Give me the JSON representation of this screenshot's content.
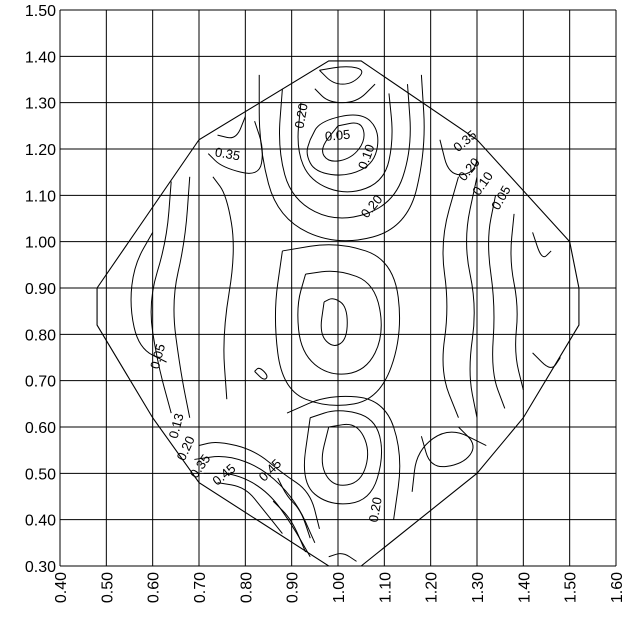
{
  "chart_data": {
    "type": "contour",
    "title": "",
    "xlabel": "",
    "ylabel": "",
    "xlim": [
      0.4,
      1.6
    ],
    "ylim": [
      0.3,
      1.5
    ],
    "grid": true,
    "x_ticks": [
      "0.40",
      "0.50",
      "0.60",
      "0.70",
      "0.80",
      "0.90",
      "1.00",
      "1.10",
      "1.20",
      "1.30",
      "1.40",
      "1.50",
      "1.60"
    ],
    "y_ticks": [
      "0.30",
      "0.40",
      "0.50",
      "0.60",
      "0.70",
      "0.80",
      "0.90",
      "1.00",
      "1.10",
      "1.20",
      "1.30",
      "1.40",
      "1.50"
    ],
    "boundary": [
      [
        0.98,
        1.39
      ],
      [
        1.05,
        1.39
      ],
      [
        1.3,
        1.22
      ],
      [
        1.5,
        1.0
      ],
      [
        1.52,
        0.9
      ],
      [
        1.52,
        0.82
      ],
      [
        1.4,
        0.62
      ],
      [
        1.3,
        0.5
      ],
      [
        1.05,
        0.3
      ],
      [
        0.98,
        0.3
      ],
      [
        0.7,
        0.48
      ],
      [
        0.6,
        0.62
      ],
      [
        0.48,
        0.82
      ],
      [
        0.48,
        0.9
      ],
      [
        0.7,
        1.22
      ]
    ],
    "contour_labels": [
      {
        "text": "0.05",
        "x": 1.0,
        "y": 1.22,
        "rotation": -5
      },
      {
        "text": "0.10",
        "x": 1.07,
        "y": 1.18,
        "rotation": -70
      },
      {
        "text": "0.20",
        "x": 0.93,
        "y": 1.27,
        "rotation": -80
      },
      {
        "text": "0.20",
        "x": 1.08,
        "y": 1.07,
        "rotation": -50
      },
      {
        "text": "0.35",
        "x": 0.76,
        "y": 1.18,
        "rotation": 10
      },
      {
        "text": "0.35",
        "x": 1.28,
        "y": 1.21,
        "rotation": -40
      },
      {
        "text": "0.20",
        "x": 1.29,
        "y": 1.15,
        "rotation": -50
      },
      {
        "text": "0.10",
        "x": 1.32,
        "y": 1.12,
        "rotation": -55
      },
      {
        "text": "0.05",
        "x": 1.36,
        "y": 1.09,
        "rotation": -60
      },
      {
        "text": "0.05",
        "x": 0.62,
        "y": 0.75,
        "rotation": -75
      },
      {
        "text": "0.13",
        "x": 0.66,
        "y": 0.6,
        "rotation": -75
      },
      {
        "text": "0.20",
        "x": 0.68,
        "y": 0.55,
        "rotation": -65
      },
      {
        "text": "0.35",
        "x": 0.71,
        "y": 0.51,
        "rotation": -55
      },
      {
        "text": "0.45",
        "x": 0.76,
        "y": 0.49,
        "rotation": -40
      },
      {
        "text": "0.45",
        "x": 0.86,
        "y": 0.5,
        "rotation": -45
      },
      {
        "text": "0.20",
        "x": 1.09,
        "y": 0.42,
        "rotation": -80
      }
    ],
    "contours": [
      [
        [
          0.96,
          1.37
        ],
        [
          0.99,
          1.34
        ],
        [
          1.03,
          1.34
        ],
        [
          1.06,
          1.37
        ],
        [
          1.02,
          1.38
        ],
        [
          0.96,
          1.37
        ]
      ],
      [
        [
          0.95,
          1.33
        ],
        [
          0.98,
          1.3
        ],
        [
          1.04,
          1.3
        ],
        [
          1.08,
          1.34
        ]
      ],
      [
        [
          1.0,
          1.25
        ],
        [
          1.05,
          1.26
        ],
        [
          1.06,
          1.22
        ],
        [
          1.03,
          1.18
        ],
        [
          0.98,
          1.17
        ],
        [
          0.96,
          1.2
        ],
        [
          1.0,
          1.25
        ]
      ],
      [
        [
          0.94,
          1.22
        ],
        [
          0.96,
          1.26
        ],
        [
          1.05,
          1.28
        ],
        [
          1.09,
          1.24
        ],
        [
          1.08,
          1.17
        ],
        [
          1.02,
          1.14
        ],
        [
          0.95,
          1.15
        ],
        [
          0.93,
          1.19
        ],
        [
          0.94,
          1.22
        ]
      ],
      [
        [
          0.92,
          1.3
        ],
        [
          0.91,
          1.2
        ],
        [
          0.94,
          1.13
        ],
        [
          1.02,
          1.1
        ],
        [
          1.1,
          1.13
        ],
        [
          1.12,
          1.22
        ],
        [
          1.11,
          1.32
        ]
      ],
      [
        [
          0.88,
          1.33
        ],
        [
          0.87,
          1.2
        ],
        [
          0.9,
          1.09
        ],
        [
          1.0,
          1.04
        ],
        [
          1.12,
          1.08
        ],
        [
          1.16,
          1.2
        ],
        [
          1.15,
          1.34
        ]
      ],
      [
        [
          0.83,
          1.36
        ],
        [
          0.83,
          1.2
        ],
        [
          0.87,
          1.05
        ],
        [
          1.0,
          0.99
        ],
        [
          1.15,
          1.03
        ],
        [
          1.19,
          1.2
        ],
        [
          1.18,
          1.36
        ]
      ],
      [
        [
          0.97,
          0.87
        ],
        [
          0.99,
          0.88
        ],
        [
          1.02,
          0.86
        ],
        [
          1.02,
          0.79
        ],
        [
          0.99,
          0.77
        ],
        [
          0.96,
          0.8
        ],
        [
          0.97,
          0.87
        ]
      ],
      [
        [
          0.93,
          0.93
        ],
        [
          1.0,
          0.94
        ],
        [
          1.08,
          0.91
        ],
        [
          1.1,
          0.8
        ],
        [
          1.06,
          0.72
        ],
        [
          0.98,
          0.71
        ],
        [
          0.92,
          0.76
        ],
        [
          0.91,
          0.86
        ],
        [
          0.93,
          0.93
        ]
      ],
      [
        [
          0.88,
          0.98
        ],
        [
          1.0,
          1.0
        ],
        [
          1.12,
          0.96
        ],
        [
          1.14,
          0.8
        ],
        [
          1.09,
          0.66
        ],
        [
          0.98,
          0.64
        ],
        [
          0.88,
          0.68
        ],
        [
          0.86,
          0.84
        ],
        [
          0.88,
          0.98
        ]
      ],
      [
        [
          0.98,
          0.6
        ],
        [
          1.04,
          0.61
        ],
        [
          1.07,
          0.55
        ],
        [
          1.05,
          0.48
        ],
        [
          0.99,
          0.47
        ],
        [
          0.96,
          0.52
        ],
        [
          0.98,
          0.6
        ]
      ],
      [
        [
          0.94,
          0.62
        ],
        [
          1.0,
          0.64
        ],
        [
          1.08,
          0.62
        ],
        [
          1.1,
          0.54
        ],
        [
          1.07,
          0.44
        ],
        [
          0.98,
          0.43
        ],
        [
          0.92,
          0.48
        ],
        [
          0.94,
          0.62
        ]
      ],
      [
        [
          0.89,
          0.63
        ],
        [
          0.98,
          0.67
        ],
        [
          1.1,
          0.66
        ],
        [
          1.14,
          0.54
        ],
        [
          1.12,
          0.4
        ]
      ],
      [
        [
          0.76,
          0.66
        ],
        [
          0.75,
          0.8
        ],
        [
          0.78,
          0.98
        ],
        [
          0.76,
          1.1
        ],
        [
          0.73,
          1.14
        ]
      ],
      [
        [
          0.68,
          1.14
        ],
        [
          0.67,
          1.0
        ],
        [
          0.64,
          0.87
        ],
        [
          0.66,
          0.72
        ],
        [
          0.68,
          0.62
        ]
      ],
      [
        [
          0.64,
          1.13
        ],
        [
          0.63,
          1.0
        ],
        [
          0.59,
          0.87
        ],
        [
          0.61,
          0.74
        ],
        [
          0.64,
          0.63
        ]
      ],
      [
        [
          0.6,
          1.02
        ],
        [
          0.56,
          0.95
        ],
        [
          0.55,
          0.86
        ],
        [
          0.57,
          0.77
        ],
        [
          0.63,
          0.74
        ]
      ],
      [
        [
          0.72,
          1.19
        ],
        [
          0.75,
          1.16
        ],
        [
          0.83,
          1.14
        ],
        [
          0.84,
          1.2
        ],
        [
          0.82,
          1.26
        ]
      ],
      [
        [
          0.74,
          1.23
        ],
        [
          0.78,
          1.22
        ],
        [
          0.8,
          1.27
        ]
      ],
      [
        [
          1.26,
          1.14
        ],
        [
          1.22,
          1.0
        ],
        [
          1.24,
          0.86
        ],
        [
          1.22,
          0.72
        ],
        [
          1.26,
          0.62
        ]
      ],
      [
        [
          1.3,
          1.14
        ],
        [
          1.27,
          1.0
        ],
        [
          1.3,
          0.86
        ],
        [
          1.28,
          0.72
        ],
        [
          1.3,
          0.62
        ]
      ],
      [
        [
          1.34,
          1.1
        ],
        [
          1.32,
          1.0
        ],
        [
          1.34,
          0.86
        ],
        [
          1.33,
          0.72
        ],
        [
          1.36,
          0.64
        ]
      ],
      [
        [
          1.38,
          1.06
        ],
        [
          1.37,
          0.96
        ],
        [
          1.39,
          0.86
        ],
        [
          1.38,
          0.76
        ],
        [
          1.4,
          0.68
        ]
      ],
      [
        [
          1.42,
          1.02
        ],
        [
          1.44,
          0.96
        ],
        [
          1.46,
          0.98
        ]
      ],
      [
        [
          1.42,
          0.76
        ],
        [
          1.46,
          0.72
        ],
        [
          1.48,
          0.75
        ]
      ],
      [
        [
          1.22,
          1.22
        ],
        [
          1.24,
          1.14
        ],
        [
          1.3,
          1.15
        ],
        [
          1.3,
          1.22
        ]
      ],
      [
        [
          1.18,
          0.58
        ],
        [
          1.2,
          0.51
        ],
        [
          1.27,
          0.52
        ],
        [
          1.3,
          0.56
        ],
        [
          1.26,
          0.6
        ]
      ],
      [
        [
          1.16,
          0.46
        ],
        [
          1.17,
          0.55
        ],
        [
          1.24,
          0.6
        ],
        [
          1.32,
          0.56
        ]
      ],
      [
        [
          0.7,
          0.56
        ],
        [
          0.74,
          0.57
        ],
        [
          0.82,
          0.55
        ],
        [
          0.88,
          0.5
        ],
        [
          0.94,
          0.46
        ],
        [
          0.96,
          0.38
        ]
      ],
      [
        [
          0.69,
          0.53
        ],
        [
          0.76,
          0.54
        ],
        [
          0.84,
          0.51
        ],
        [
          0.91,
          0.44
        ],
        [
          0.95,
          0.35
        ]
      ],
      [
        [
          0.71,
          0.5
        ],
        [
          0.78,
          0.5
        ],
        [
          0.85,
          0.46
        ],
        [
          0.9,
          0.39
        ],
        [
          0.94,
          0.32
        ]
      ],
      [
        [
          0.74,
          0.48
        ],
        [
          0.8,
          0.47
        ],
        [
          0.84,
          0.42
        ],
        [
          0.88,
          0.37
        ]
      ],
      [
        [
          0.87,
          0.49
        ],
        [
          0.89,
          0.45
        ],
        [
          0.92,
          0.42
        ],
        [
          0.94,
          0.36
        ]
      ],
      [
        [
          0.86,
          0.44
        ],
        [
          0.9,
          0.4
        ],
        [
          0.93,
          0.33
        ]
      ],
      [
        [
          0.98,
          0.32
        ],
        [
          1.01,
          0.33
        ],
        [
          1.04,
          0.31
        ]
      ],
      [
        [
          0.82,
          0.72
        ],
        [
          0.84,
          0.7
        ],
        [
          0.85,
          0.71
        ],
        [
          0.83,
          0.73
        ],
        [
          0.82,
          0.72
        ]
      ]
    ]
  }
}
